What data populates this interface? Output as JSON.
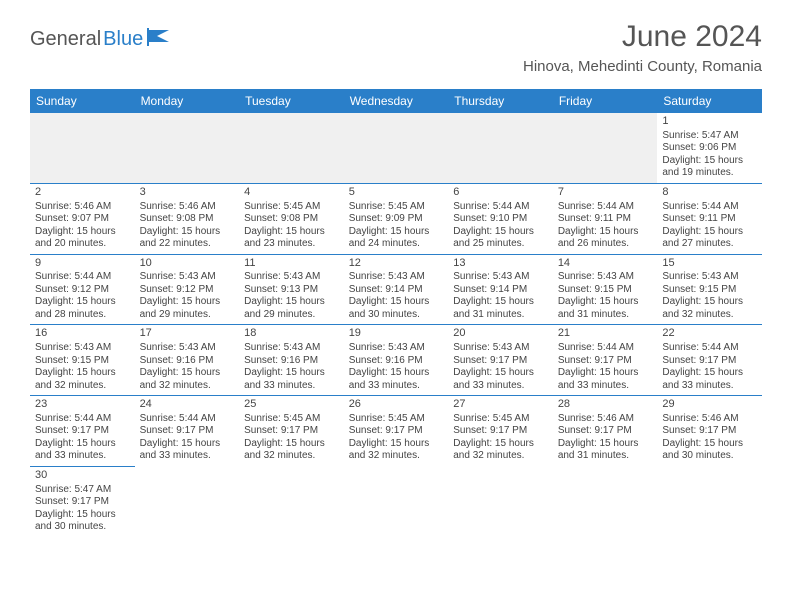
{
  "brand": {
    "part1": "General",
    "part2": "Blue"
  },
  "title": "June 2024",
  "location": "Hinova, Mehedinti County, Romania",
  "colors": {
    "header_bg": "#2a7fc9",
    "header_text": "#ffffff",
    "border": "#2a7fc9",
    "text": "#444444",
    "muted_bg": "#f0f0f0"
  },
  "dayHeaders": [
    "Sunday",
    "Monday",
    "Tuesday",
    "Wednesday",
    "Thursday",
    "Friday",
    "Saturday"
  ],
  "weeks": [
    [
      null,
      null,
      null,
      null,
      null,
      null,
      {
        "n": "1",
        "sr": "Sunrise: 5:47 AM",
        "ss": "Sunset: 9:06 PM",
        "d1": "Daylight: 15 hours",
        "d2": "and 19 minutes."
      }
    ],
    [
      {
        "n": "2",
        "sr": "Sunrise: 5:46 AM",
        "ss": "Sunset: 9:07 PM",
        "d1": "Daylight: 15 hours",
        "d2": "and 20 minutes."
      },
      {
        "n": "3",
        "sr": "Sunrise: 5:46 AM",
        "ss": "Sunset: 9:08 PM",
        "d1": "Daylight: 15 hours",
        "d2": "and 22 minutes."
      },
      {
        "n": "4",
        "sr": "Sunrise: 5:45 AM",
        "ss": "Sunset: 9:08 PM",
        "d1": "Daylight: 15 hours",
        "d2": "and 23 minutes."
      },
      {
        "n": "5",
        "sr": "Sunrise: 5:45 AM",
        "ss": "Sunset: 9:09 PM",
        "d1": "Daylight: 15 hours",
        "d2": "and 24 minutes."
      },
      {
        "n": "6",
        "sr": "Sunrise: 5:44 AM",
        "ss": "Sunset: 9:10 PM",
        "d1": "Daylight: 15 hours",
        "d2": "and 25 minutes."
      },
      {
        "n": "7",
        "sr": "Sunrise: 5:44 AM",
        "ss": "Sunset: 9:11 PM",
        "d1": "Daylight: 15 hours",
        "d2": "and 26 minutes."
      },
      {
        "n": "8",
        "sr": "Sunrise: 5:44 AM",
        "ss": "Sunset: 9:11 PM",
        "d1": "Daylight: 15 hours",
        "d2": "and 27 minutes."
      }
    ],
    [
      {
        "n": "9",
        "sr": "Sunrise: 5:44 AM",
        "ss": "Sunset: 9:12 PM",
        "d1": "Daylight: 15 hours",
        "d2": "and 28 minutes."
      },
      {
        "n": "10",
        "sr": "Sunrise: 5:43 AM",
        "ss": "Sunset: 9:12 PM",
        "d1": "Daylight: 15 hours",
        "d2": "and 29 minutes."
      },
      {
        "n": "11",
        "sr": "Sunrise: 5:43 AM",
        "ss": "Sunset: 9:13 PM",
        "d1": "Daylight: 15 hours",
        "d2": "and 29 minutes."
      },
      {
        "n": "12",
        "sr": "Sunrise: 5:43 AM",
        "ss": "Sunset: 9:14 PM",
        "d1": "Daylight: 15 hours",
        "d2": "and 30 minutes."
      },
      {
        "n": "13",
        "sr": "Sunrise: 5:43 AM",
        "ss": "Sunset: 9:14 PM",
        "d1": "Daylight: 15 hours",
        "d2": "and 31 minutes."
      },
      {
        "n": "14",
        "sr": "Sunrise: 5:43 AM",
        "ss": "Sunset: 9:15 PM",
        "d1": "Daylight: 15 hours",
        "d2": "and 31 minutes."
      },
      {
        "n": "15",
        "sr": "Sunrise: 5:43 AM",
        "ss": "Sunset: 9:15 PM",
        "d1": "Daylight: 15 hours",
        "d2": "and 32 minutes."
      }
    ],
    [
      {
        "n": "16",
        "sr": "Sunrise: 5:43 AM",
        "ss": "Sunset: 9:15 PM",
        "d1": "Daylight: 15 hours",
        "d2": "and 32 minutes."
      },
      {
        "n": "17",
        "sr": "Sunrise: 5:43 AM",
        "ss": "Sunset: 9:16 PM",
        "d1": "Daylight: 15 hours",
        "d2": "and 32 minutes."
      },
      {
        "n": "18",
        "sr": "Sunrise: 5:43 AM",
        "ss": "Sunset: 9:16 PM",
        "d1": "Daylight: 15 hours",
        "d2": "and 33 minutes."
      },
      {
        "n": "19",
        "sr": "Sunrise: 5:43 AM",
        "ss": "Sunset: 9:16 PM",
        "d1": "Daylight: 15 hours",
        "d2": "and 33 minutes."
      },
      {
        "n": "20",
        "sr": "Sunrise: 5:43 AM",
        "ss": "Sunset: 9:17 PM",
        "d1": "Daylight: 15 hours",
        "d2": "and 33 minutes."
      },
      {
        "n": "21",
        "sr": "Sunrise: 5:44 AM",
        "ss": "Sunset: 9:17 PM",
        "d1": "Daylight: 15 hours",
        "d2": "and 33 minutes."
      },
      {
        "n": "22",
        "sr": "Sunrise: 5:44 AM",
        "ss": "Sunset: 9:17 PM",
        "d1": "Daylight: 15 hours",
        "d2": "and 33 minutes."
      }
    ],
    [
      {
        "n": "23",
        "sr": "Sunrise: 5:44 AM",
        "ss": "Sunset: 9:17 PM",
        "d1": "Daylight: 15 hours",
        "d2": "and 33 minutes."
      },
      {
        "n": "24",
        "sr": "Sunrise: 5:44 AM",
        "ss": "Sunset: 9:17 PM",
        "d1": "Daylight: 15 hours",
        "d2": "and 33 minutes."
      },
      {
        "n": "25",
        "sr": "Sunrise: 5:45 AM",
        "ss": "Sunset: 9:17 PM",
        "d1": "Daylight: 15 hours",
        "d2": "and 32 minutes."
      },
      {
        "n": "26",
        "sr": "Sunrise: 5:45 AM",
        "ss": "Sunset: 9:17 PM",
        "d1": "Daylight: 15 hours",
        "d2": "and 32 minutes."
      },
      {
        "n": "27",
        "sr": "Sunrise: 5:45 AM",
        "ss": "Sunset: 9:17 PM",
        "d1": "Daylight: 15 hours",
        "d2": "and 32 minutes."
      },
      {
        "n": "28",
        "sr": "Sunrise: 5:46 AM",
        "ss": "Sunset: 9:17 PM",
        "d1": "Daylight: 15 hours",
        "d2": "and 31 minutes."
      },
      {
        "n": "29",
        "sr": "Sunrise: 5:46 AM",
        "ss": "Sunset: 9:17 PM",
        "d1": "Daylight: 15 hours",
        "d2": "and 30 minutes."
      }
    ],
    [
      {
        "n": "30",
        "sr": "Sunrise: 5:47 AM",
        "ss": "Sunset: 9:17 PM",
        "d1": "Daylight: 15 hours",
        "d2": "and 30 minutes."
      },
      null,
      null,
      null,
      null,
      null,
      null
    ]
  ]
}
